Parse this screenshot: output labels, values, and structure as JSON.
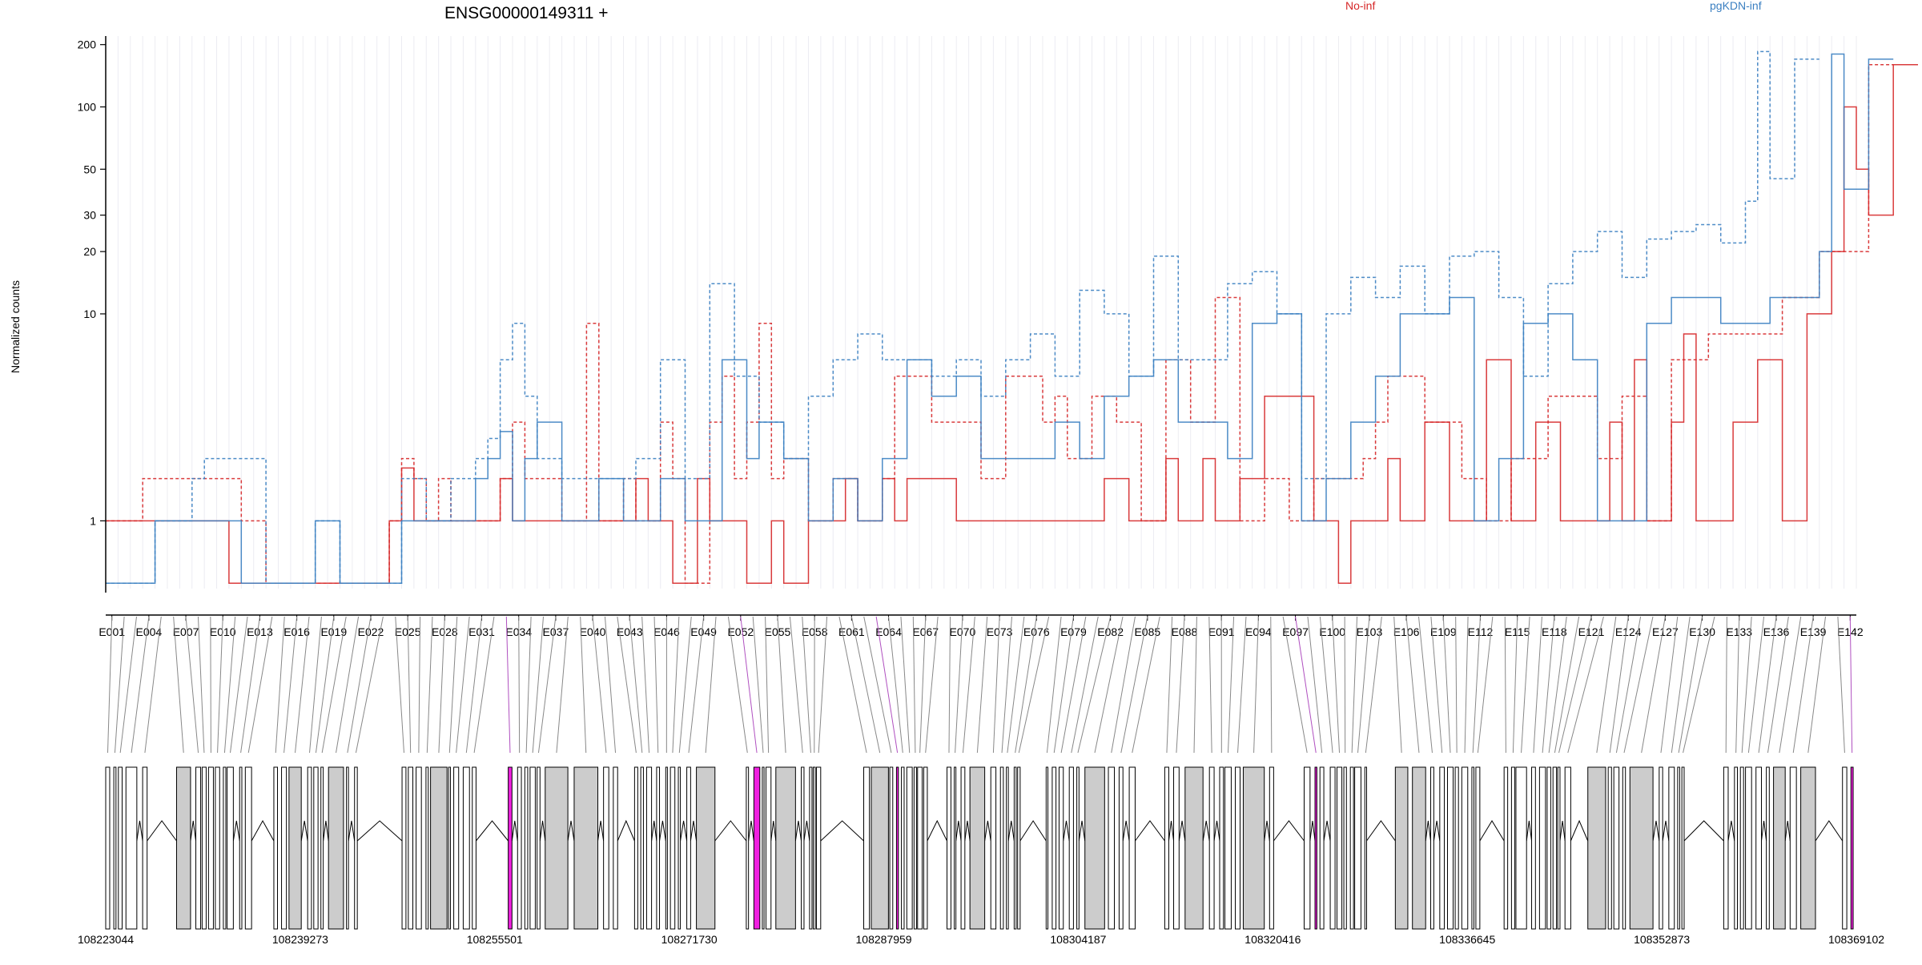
{
  "chart_data": {
    "type": "line",
    "title": "ENSG00000149311 +",
    "ylabel": "Normalized counts",
    "xlabel": "",
    "scale": "log",
    "ylim": [
      0.45,
      220
    ],
    "y_ticks": [
      1,
      10,
      20,
      30,
      50,
      100,
      200
    ],
    "grid": "vertical",
    "legend_placement": "top",
    "legend": [
      {
        "label": "No-inf",
        "color": "#d62728"
      },
      {
        "label": "pgKDN-inf",
        "color": "#3a7fc1"
      }
    ],
    "exon_count": 142,
    "x_tick_labels": [
      "E001",
      "E004",
      "E007",
      "E010",
      "E013",
      "E016",
      "E019",
      "E022",
      "E025",
      "E028",
      "E031",
      "E034",
      "E037",
      "E040",
      "E043",
      "E046",
      "E049",
      "E052",
      "E055",
      "E058",
      "E061",
      "E064",
      "E067",
      "E070",
      "E073",
      "E076",
      "E079",
      "E082",
      "E085",
      "E088",
      "E091",
      "E094",
      "E097",
      "E100",
      "E103",
      "E106",
      "E109",
      "E112",
      "E115",
      "E118",
      "E121",
      "E124",
      "E127",
      "E130",
      "E133",
      "E136",
      "E139",
      "E142"
    ],
    "genomic_coordinates": [
      "108223044",
      "108239273",
      "108255501",
      "108271730",
      "108287959",
      "108304187",
      "108320416",
      "108336645",
      "108352873",
      "108369102"
    ],
    "highlight_color": "#f020e0",
    "series": [
      {
        "name": "No-inf",
        "color": "#d62728",
        "line": "solid",
        "values": [
          1,
          1,
          1,
          1,
          1,
          1,
          1,
          1,
          1,
          1,
          0.5,
          0.5,
          0.5,
          0.5,
          0.5,
          0.5,
          0.5,
          0.5,
          0.5,
          0.5,
          0.5,
          0.5,
          0.5,
          1,
          1.8,
          1,
          1,
          1,
          1,
          1,
          1,
          1,
          1.6,
          1,
          1,
          1,
          1,
          1,
          1,
          1,
          1,
          1,
          1,
          1.6,
          1,
          1,
          0.5,
          0.5,
          1.6,
          1,
          1,
          1,
          0.5,
          0.5,
          1,
          0.5,
          0.5,
          1,
          1,
          1,
          1.6,
          1,
          1,
          1.6,
          1,
          1.6,
          1.6,
          1.6,
          1.6,
          1,
          1,
          1,
          1,
          1,
          1,
          1,
          1,
          1,
          1,
          1,
          1,
          1.6,
          1.6,
          1,
          1,
          1,
          2,
          1,
          1,
          2,
          1,
          1,
          1.6,
          1.6,
          4,
          4,
          4,
          4,
          1,
          1,
          0.5,
          1,
          1,
          1,
          2,
          1,
          1,
          3,
          3,
          1,
          1,
          1,
          6,
          6,
          1,
          1,
          3,
          3,
          1,
          1,
          1,
          1,
          3,
          1,
          6,
          1,
          1,
          3,
          8,
          1,
          1,
          1,
          3,
          3,
          6,
          6,
          1,
          1,
          10,
          10,
          20,
          100,
          50,
          30,
          30,
          160,
          160
        ]
      },
      {
        "name": "No-inf",
        "color": "#d62728",
        "line": "dashed",
        "values": [
          1,
          1,
          1,
          1.6,
          1.6,
          1.6,
          1.6,
          1.6,
          1.6,
          1.6,
          1.6,
          1,
          1,
          0.5,
          0.5,
          0.5,
          0.5,
          0.5,
          0.5,
          0.5,
          0.5,
          0.5,
          0.5,
          1,
          2,
          1.6,
          1,
          1.6,
          1,
          1,
          1,
          1,
          1.6,
          3,
          1.6,
          1.6,
          1.6,
          1,
          1,
          9,
          1,
          1,
          1.6,
          1,
          1,
          3,
          1.6,
          0.5,
          0.5,
          3,
          5,
          1.6,
          3,
          9,
          1.6,
          2,
          2,
          1,
          1,
          1.6,
          1.6,
          1,
          1,
          1.6,
          5,
          5,
          5,
          3,
          3,
          3,
          3,
          1.6,
          1.6,
          5,
          5,
          5,
          3,
          4,
          2,
          2,
          4,
          4,
          3,
          3,
          1,
          1,
          6,
          6,
          3,
          3,
          12,
          12,
          1,
          1,
          1.6,
          1.6,
          1,
          1,
          1.6,
          1.6,
          1.6,
          1.6,
          2,
          3,
          5,
          5,
          5,
          3,
          3,
          3,
          1.6,
          1.6,
          1,
          1,
          2,
          2,
          2,
          4,
          4,
          4,
          4,
          2,
          2,
          4,
          4,
          1,
          1,
          6,
          6,
          6,
          8,
          8,
          8,
          8,
          8,
          8,
          12,
          12,
          12,
          20,
          20,
          20,
          20,
          160,
          160
        ]
      },
      {
        "name": "pgKDN-inf",
        "color": "#3a7fc1",
        "line": "solid",
        "values": [
          0.5,
          0.5,
          0.5,
          0.5,
          1,
          1,
          1,
          1,
          1,
          1,
          1,
          0.5,
          0.5,
          0.5,
          0.5,
          0.5,
          0.5,
          1,
          1,
          0.5,
          0.5,
          0.5,
          0.5,
          0.5,
          1,
          1,
          1,
          1,
          1,
          1,
          1.6,
          2,
          2.7,
          1,
          2,
          3,
          3,
          1,
          1,
          1,
          1.6,
          1.6,
          1,
          1,
          1,
          1.6,
          1.6,
          1,
          1,
          1,
          6,
          6,
          2,
          3,
          3,
          2,
          2,
          1,
          1,
          1.6,
          1.6,
          1,
          1,
          2,
          2,
          6,
          6,
          4,
          4,
          5,
          5,
          2,
          2,
          2,
          2,
          2,
          2,
          3,
          3,
          2,
          2,
          4,
          4,
          5,
          5,
          6,
          6,
          3,
          3,
          3,
          3,
          2,
          2,
          9,
          9,
          10,
          10,
          1,
          1,
          1.6,
          1.6,
          3,
          3,
          5,
          5,
          10,
          10,
          10,
          10,
          12,
          12,
          1,
          1,
          2,
          2,
          9,
          9,
          10,
          10,
          6,
          6,
          1,
          1,
          1,
          1,
          9,
          9,
          12,
          12,
          12,
          12,
          9,
          9,
          9,
          9,
          12,
          12,
          12,
          12,
          20,
          180,
          40,
          40,
          170,
          170
        ]
      },
      {
        "name": "pgKDN-inf",
        "color": "#3a7fc1",
        "line": "dashed",
        "values": [
          0.5,
          0.5,
          0.5,
          0.5,
          1,
          1,
          1,
          1.6,
          2,
          2,
          2,
          2,
          2,
          0.5,
          0.5,
          0.5,
          0.5,
          1,
          1,
          0.5,
          0.5,
          0.5,
          0.5,
          0.5,
          1.6,
          1.6,
          1,
          1,
          1.6,
          1.6,
          2,
          2.5,
          6,
          9,
          4,
          2,
          2,
          1.6,
          1.6,
          1.6,
          1.6,
          1.6,
          1.6,
          2,
          2,
          6,
          6,
          1.6,
          1.6,
          14,
          14,
          5,
          5,
          3,
          3,
          2,
          2,
          4,
          4,
          6,
          6,
          8,
          8,
          6,
          6,
          6,
          6,
          5,
          5,
          6,
          6,
          4,
          4,
          6,
          6,
          8,
          8,
          5,
          5,
          13,
          13,
          10,
          10,
          5,
          5,
          19,
          19,
          6,
          6,
          6,
          6,
          14,
          14,
          16,
          16,
          10,
          10,
          1.6,
          1.6,
          10,
          10,
          15,
          15,
          12,
          12,
          17,
          17,
          10,
          10,
          19,
          19,
          20,
          20,
          12,
          12,
          5,
          5,
          14,
          14,
          20,
          20,
          25,
          25,
          15,
          15,
          23,
          23,
          25,
          25,
          27,
          27,
          22,
          22,
          35,
          185,
          45,
          45,
          170,
          170
        ]
      }
    ]
  }
}
